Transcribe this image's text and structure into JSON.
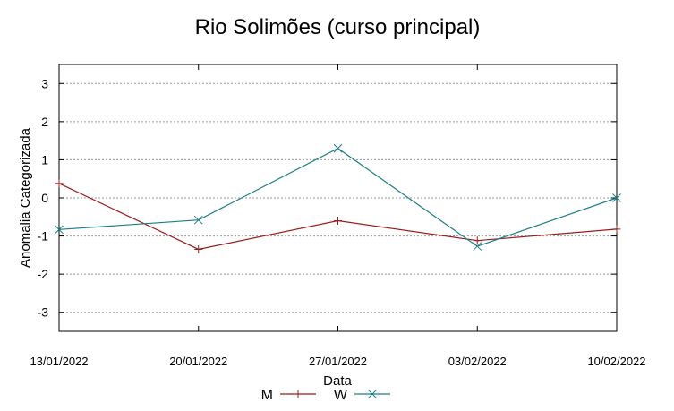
{
  "chart_data": {
    "type": "line",
    "title": "Rio Solimões (curso principal)",
    "xlabel": "Data",
    "ylabel": "Anomalia Categorizada",
    "categories": [
      "13/01/2022",
      "20/01/2022",
      "27/01/2022",
      "03/02/2022",
      "10/02/2022"
    ],
    "ylim": [
      -3.5,
      3.5
    ],
    "yticks": [
      "3",
      "2",
      "1",
      "0",
      "-1",
      "-2",
      "-3"
    ],
    "grid": true,
    "legend_position": "bottom",
    "series": [
      {
        "name": "M",
        "color": "#9b1c1c",
        "marker": "plus",
        "values": [
          0.38,
          -1.35,
          -0.6,
          -1.12,
          -0.82
        ]
      },
      {
        "name": "W",
        "color": "#1a7f85",
        "marker": "x",
        "values": [
          -0.83,
          -0.58,
          1.3,
          -1.27,
          0.0
        ]
      }
    ]
  }
}
